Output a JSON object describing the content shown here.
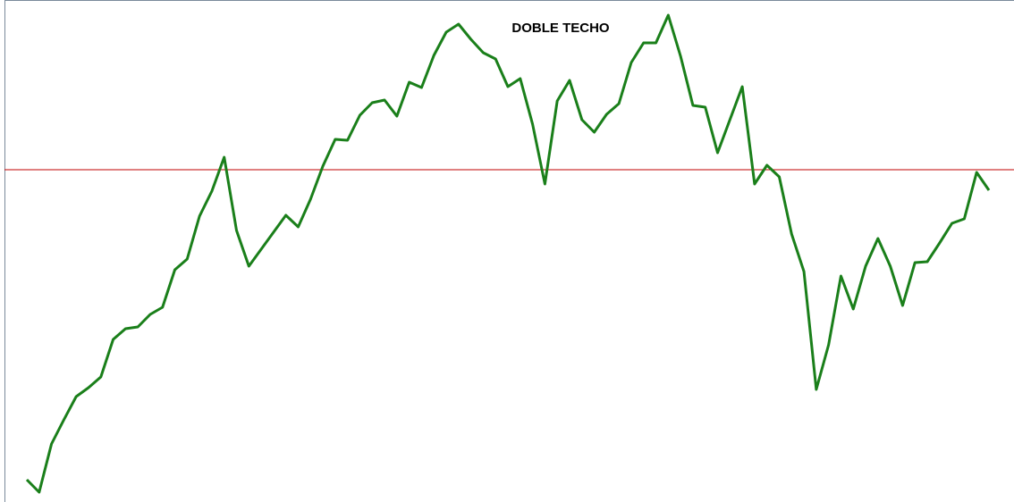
{
  "chart_data": {
    "type": "line",
    "title": "DOBLE TECHO",
    "values": [
      25,
      11,
      65,
      92,
      118,
      128,
      140,
      182,
      194,
      196,
      210,
      218,
      260,
      272,
      320,
      348,
      386,
      304,
      264,
      283,
      302,
      321,
      308,
      339,
      376,
      406,
      405,
      433,
      447,
      450,
      432,
      470,
      464,
      500,
      526,
      535,
      518,
      503,
      496,
      465,
      474,
      423,
      356,
      449,
      472,
      428,
      414,
      434,
      446,
      492,
      514,
      514,
      545,
      499,
      444,
      442,
      391,
      428,
      465,
      356,
      377,
      364,
      300,
      258,
      126,
      176,
      253,
      216,
      264,
      295,
      264,
      220,
      268,
      269,
      290,
      312,
      317,
      369,
      349
    ],
    "color": "#1a7f1a",
    "ylim": [
      0,
      562
    ],
    "reference_line": {
      "value": 372,
      "color": "#c00000"
    }
  }
}
